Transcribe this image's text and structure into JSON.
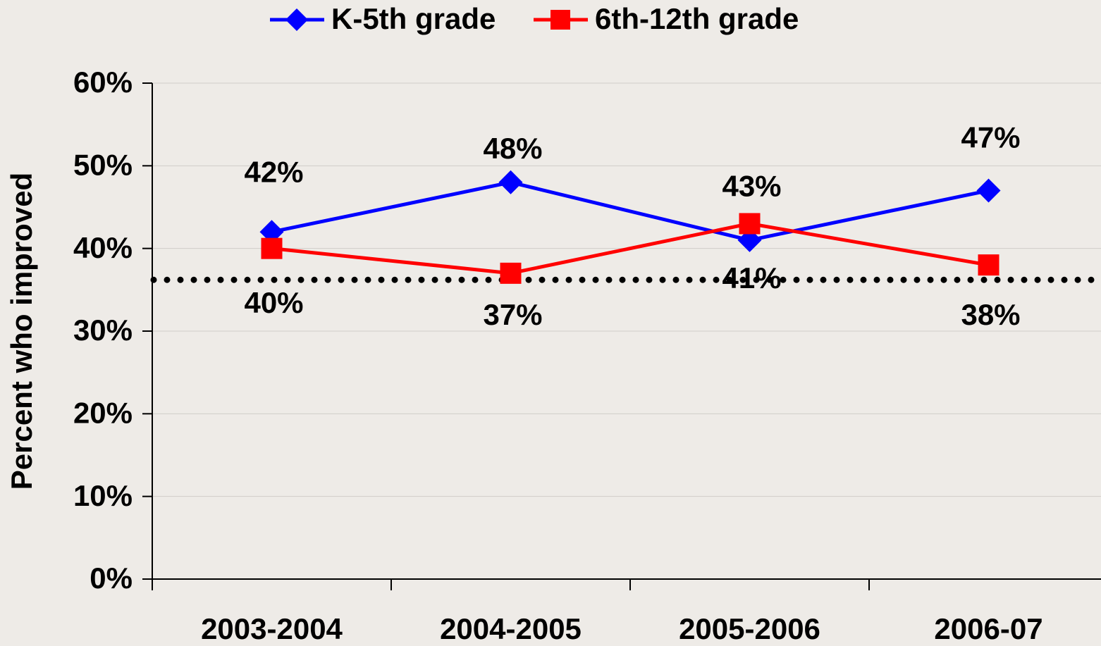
{
  "chart_data": {
    "type": "line",
    "categories": [
      "2003-2004",
      "2004-2005",
      "2005-2006",
      "2006-07"
    ],
    "series": [
      {
        "name": "K-5th grade",
        "color": "#0000ff",
        "marker": "diamond",
        "values": [
          42,
          48,
          41,
          47
        ],
        "value_labels": [
          "42%",
          "48%",
          "41%",
          "47%"
        ]
      },
      {
        "name": "6th-12th grade",
        "color": "#ff0000",
        "marker": "square",
        "values": [
          40,
          37,
          43,
          38
        ],
        "value_labels": [
          "40%",
          "37%",
          "43%",
          "38%"
        ]
      }
    ],
    "ylabel": "Percent who improved",
    "ylim": [
      0,
      60
    ],
    "yticks": [
      {
        "value": 0,
        "label": "0%"
      },
      {
        "value": 10,
        "label": "10%"
      },
      {
        "value": 20,
        "label": "20%"
      },
      {
        "value": 30,
        "label": "30%"
      },
      {
        "value": 40,
        "label": "40%"
      },
      {
        "value": 50,
        "label": "50%"
      },
      {
        "value": 60,
        "label": "60%"
      }
    ],
    "reference_line": 36.2,
    "grid": true,
    "legend": "top"
  }
}
